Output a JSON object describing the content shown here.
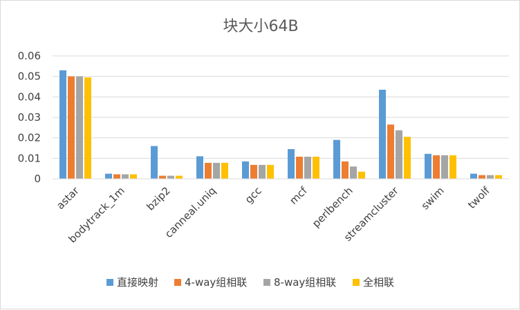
{
  "chart_data": {
    "type": "bar",
    "title": "块大小64B",
    "xlabel": "",
    "ylabel": "",
    "ylim": [
      0,
      0.06
    ],
    "yticks": [
      "0",
      "0.01",
      "0.02",
      "0.03",
      "0.04",
      "0.05",
      "0.06"
    ],
    "grid": true,
    "legend_position": "bottom",
    "categories": [
      "astar",
      "bodytrack_1m",
      "bzip2",
      "canneal.uniq",
      "gcc",
      "mcf",
      "perlbench",
      "streamcluster",
      "swim",
      "twolf"
    ],
    "series": [
      {
        "name": "直接映射",
        "color": "#5b9bd5",
        "values": [
          0.053,
          0.0025,
          0.016,
          0.011,
          0.0085,
          0.0145,
          0.019,
          0.0435,
          0.0122,
          0.0025
        ]
      },
      {
        "name": "4-way组相联",
        "color": "#ed7d31",
        "values": [
          0.05,
          0.0022,
          0.0015,
          0.0078,
          0.0068,
          0.0108,
          0.0085,
          0.0265,
          0.0115,
          0.0018
        ]
      },
      {
        "name": "8-way组相联",
        "color": "#a5a5a5",
        "values": [
          0.05,
          0.0022,
          0.0015,
          0.0078,
          0.0068,
          0.0108,
          0.006,
          0.0237,
          0.0115,
          0.0018
        ]
      },
      {
        "name": "全相联",
        "color": "#ffc000",
        "values": [
          0.0495,
          0.0022,
          0.0015,
          0.0078,
          0.0068,
          0.0108,
          0.0035,
          0.0205,
          0.0115,
          0.0018
        ]
      }
    ]
  }
}
